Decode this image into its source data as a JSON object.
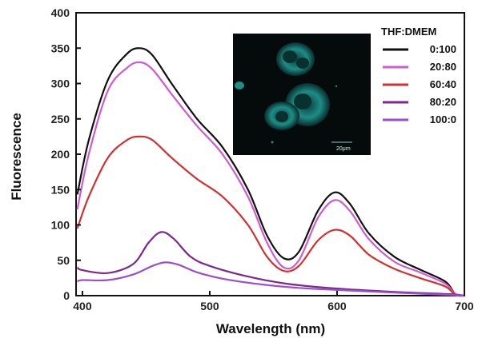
{
  "chart_data": {
    "type": "line",
    "title": "",
    "xlabel": "Wavelength (nm)",
    "ylabel": "Fluorescence",
    "xlim": [
      395,
      700
    ],
    "ylim": [
      0,
      400
    ],
    "xticks": [
      400,
      500,
      600,
      700
    ],
    "yticks": [
      0,
      50,
      100,
      150,
      200,
      250,
      300,
      350,
      400
    ],
    "legend": {
      "title": "THF:DMEM",
      "position": "top-right"
    },
    "inset": {
      "description": "fluorescence microscopy image of cells",
      "scale_label": "20μm"
    },
    "series": [
      {
        "name": "0:100",
        "color": "#111111",
        "x": [
          396,
          405,
          420,
          435,
          445,
          455,
          470,
          490,
          510,
          530,
          545,
          558,
          570,
          585,
          598,
          610,
          625,
          645,
          665,
          685,
          693,
          700
        ],
        "y": [
          143,
          220,
          305,
          342,
          350,
          340,
          300,
          250,
          210,
          150,
          85,
          53,
          62,
          120,
          146,
          130,
          88,
          55,
          37,
          20,
          2,
          0
        ]
      },
      {
        "name": "20:80",
        "color": "#d05ad0",
        "x": [
          396,
          405,
          420,
          435,
          445,
          455,
          470,
          490,
          510,
          530,
          545,
          558,
          570,
          585,
          598,
          610,
          625,
          645,
          665,
          685,
          693,
          700
        ],
        "y": [
          122,
          200,
          290,
          322,
          330,
          320,
          285,
          240,
          200,
          140,
          75,
          40,
          50,
          110,
          135,
          120,
          80,
          48,
          33,
          17,
          2,
          0
        ]
      },
      {
        "name": "60:40",
        "color": "#d23030",
        "x": [
          396,
          405,
          420,
          435,
          445,
          455,
          470,
          490,
          510,
          530,
          545,
          558,
          570,
          585,
          598,
          610,
          625,
          645,
          665,
          685,
          693,
          700
        ],
        "y": [
          95,
          140,
          195,
          220,
          225,
          220,
          195,
          165,
          140,
          100,
          55,
          35,
          42,
          78,
          93,
          85,
          58,
          38,
          25,
          13,
          1,
          0
        ]
      },
      {
        "name": "80:20",
        "color": "#7a2a8a",
        "x": [
          396,
          400,
          420,
          440,
          452,
          462,
          472,
          485,
          500,
          530,
          560,
          600,
          650,
          690,
          700
        ],
        "y": [
          40,
          36,
          32,
          45,
          75,
          90,
          80,
          55,
          42,
          27,
          17,
          10,
          5,
          2,
          0
        ]
      },
      {
        "name": "100:0",
        "color": "#9b4dcf",
        "x": [
          396,
          400,
          420,
          440,
          455,
          465,
          475,
          490,
          510,
          540,
          570,
          600,
          650,
          690,
          700
        ],
        "y": [
          20,
          22,
          22,
          30,
          42,
          47,
          44,
          33,
          24,
          16,
          11,
          8,
          4,
          1,
          0
        ]
      }
    ]
  }
}
